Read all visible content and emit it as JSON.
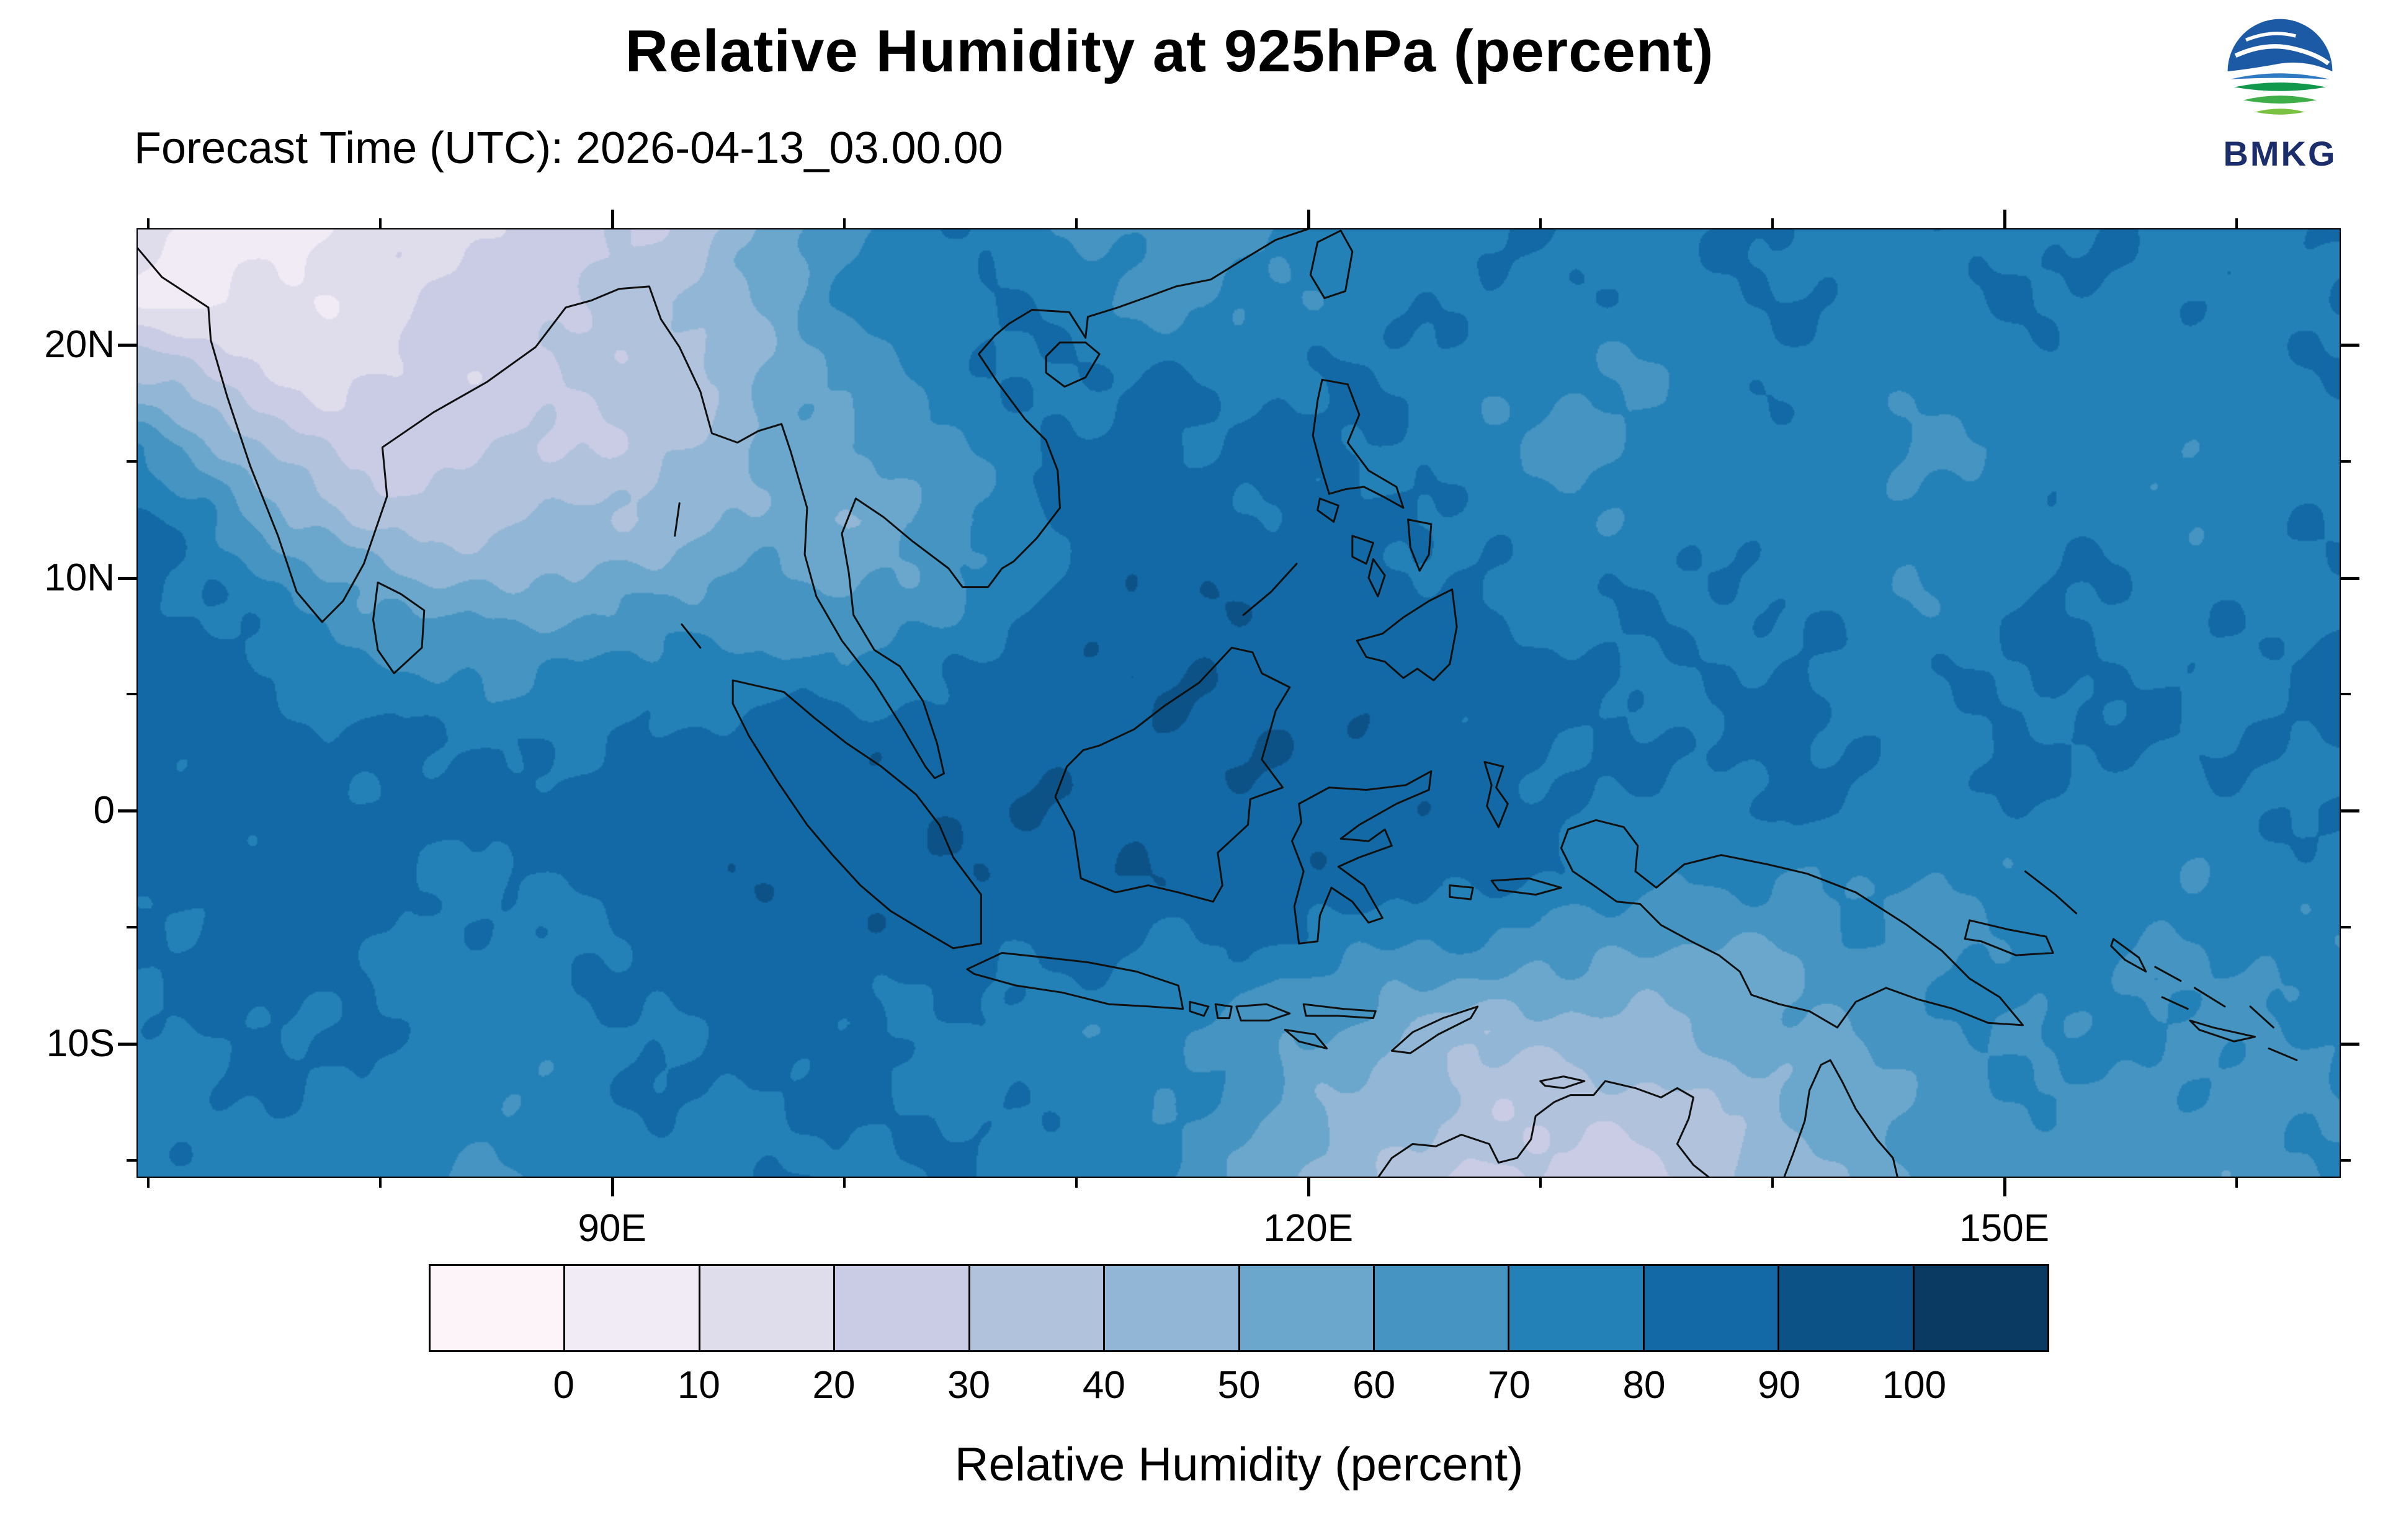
{
  "header": {
    "title": "Relative Humidity at 925hPa (percent)",
    "subtitle": "Forecast Time (UTC): 2026-04-13_03.00.00",
    "logo_text": "BMKG"
  },
  "chart_data": {
    "type": "heatmap",
    "title": "Relative Humidity at 925hPa (percent)",
    "subtitle": "Forecast Time (UTC): 2026-04-13_03.00.00",
    "colorbar_label": "Relative Humidity (percent)",
    "lon_range": [
      69.5,
      164.5
    ],
    "lat_range": [
      -15.75,
      25
    ],
    "lat_ticks": [
      {
        "value": 20,
        "label": "20N"
      },
      {
        "value": 10,
        "label": "10N"
      },
      {
        "value": 0,
        "label": "0"
      },
      {
        "value": -10,
        "label": "10S"
      }
    ],
    "lat_minor_ticks": [
      15,
      5,
      -5,
      -15
    ],
    "lon_ticks": [
      {
        "value": 90,
        "label": "90E"
      },
      {
        "value": 120,
        "label": "120E"
      },
      {
        "value": 150,
        "label": "150E"
      }
    ],
    "lon_minor_ticks": [
      70,
      80,
      100,
      110,
      130,
      140,
      160
    ],
    "colorbar": {
      "tick_labels": [
        "0",
        "10",
        "20",
        "30",
        "40",
        "50",
        "60",
        "70",
        "80",
        "90",
        "100"
      ],
      "colors": [
        "#fdf4f9",
        "#f0ebf4",
        "#dfdcec",
        "#c9cce4",
        "#b0c2dc",
        "#92b6d5",
        "#6ba7cc",
        "#4594c2",
        "#2481b7",
        "#1269a6",
        "#0d5286",
        "#0a3a61"
      ]
    },
    "grid": {
      "nx": 32,
      "ny": 14,
      "units": "percent",
      "values": [
        [
          10,
          6,
          8,
          12,
          18,
          22,
          26,
          30,
          38,
          52,
          68,
          76,
          78,
          72,
          66,
          62,
          70,
          75,
          78,
          80,
          78,
          76,
          78,
          80,
          78,
          76,
          78,
          80,
          78,
          76,
          78,
          80
        ],
        [
          12,
          8,
          10,
          14,
          20,
          25,
          30,
          35,
          42,
          55,
          70,
          78,
          80,
          75,
          70,
          66,
          72,
          76,
          78,
          80,
          78,
          76,
          78,
          80,
          78,
          76,
          78,
          80,
          78,
          76,
          78,
          80
        ],
        [
          40,
          28,
          20,
          18,
          22,
          25,
          28,
          32,
          40,
          52,
          62,
          72,
          78,
          80,
          80,
          78,
          78,
          80,
          78,
          74,
          71,
          70,
          74,
          78,
          75,
          72,
          75,
          78,
          76,
          74,
          76,
          78
        ],
        [
          70,
          55,
          35,
          25,
          25,
          28,
          30,
          34,
          42,
          55,
          58,
          65,
          75,
          82,
          84,
          82,
          80,
          82,
          78,
          72,
          68,
          70,
          74,
          76,
          72,
          68,
          72,
          76,
          74,
          72,
          74,
          76
        ],
        [
          80,
          72,
          55,
          40,
          35,
          38,
          40,
          42,
          48,
          55,
          52,
          58,
          70,
          80,
          85,
          85,
          82,
          84,
          80,
          76,
          72,
          74,
          76,
          78,
          74,
          70,
          74,
          78,
          76,
          74,
          76,
          78
        ],
        [
          84,
          80,
          70,
          60,
          55,
          52,
          55,
          58,
          60,
          62,
          58,
          65,
          75,
          82,
          87,
          87,
          85,
          86,
          84,
          80,
          76,
          78,
          78,
          80,
          76,
          72,
          76,
          80,
          78,
          76,
          78,
          80
        ],
        [
          86,
          84,
          80,
          74,
          70,
          68,
          70,
          72,
          74,
          74,
          72,
          76,
          82,
          86,
          88,
          88,
          87,
          87,
          86,
          84,
          80,
          80,
          80,
          82,
          78,
          76,
          78,
          82,
          80,
          78,
          80,
          82
        ],
        [
          86,
          85,
          84,
          82,
          80,
          78,
          80,
          82,
          84,
          84,
          84,
          85,
          86,
          88,
          88,
          88,
          88,
          87,
          86,
          85,
          82,
          80,
          80,
          82,
          80,
          78,
          80,
          82,
          80,
          78,
          80,
          82
        ],
        [
          84,
          85,
          86,
          84,
          82,
          82,
          84,
          85,
          86,
          86,
          86,
          87,
          88,
          88,
          88,
          88,
          87,
          86,
          85,
          84,
          82,
          78,
          78,
          80,
          78,
          76,
          78,
          80,
          78,
          76,
          78,
          80
        ],
        [
          82,
          84,
          85,
          84,
          80,
          78,
          80,
          84,
          86,
          86,
          86,
          87,
          88,
          88,
          87,
          86,
          86,
          85,
          84,
          82,
          78,
          72,
          68,
          70,
          72,
          70,
          72,
          76,
          74,
          72,
          74,
          76
        ],
        [
          80,
          82,
          84,
          82,
          78,
          76,
          78,
          82,
          84,
          84,
          85,
          84,
          82,
          80,
          78,
          80,
          78,
          72,
          68,
          64,
          62,
          58,
          56,
          60,
          66,
          68,
          70,
          74,
          72,
          70,
          72,
          74
        ],
        [
          78,
          80,
          82,
          80,
          76,
          74,
          76,
          80,
          82,
          82,
          83,
          78,
          76,
          74,
          72,
          68,
          62,
          58,
          48,
          42,
          44,
          48,
          52,
          56,
          62,
          66,
          70,
          72,
          70,
          68,
          70,
          72
        ],
        [
          76,
          78,
          80,
          78,
          74,
          72,
          74,
          78,
          80,
          80,
          81,
          80,
          78,
          76,
          74,
          70,
          60,
          50,
          42,
          35,
          32,
          35,
          40,
          46,
          55,
          62,
          66,
          70,
          68,
          66,
          68,
          70
        ],
        [
          74,
          76,
          78,
          76,
          72,
          70,
          72,
          76,
          78,
          78,
          80,
          80,
          78,
          76,
          72,
          65,
          55,
          42,
          35,
          28,
          25,
          28,
          34,
          42,
          52,
          60,
          64,
          68,
          66,
          64,
          66,
          68
        ]
      ]
    }
  }
}
